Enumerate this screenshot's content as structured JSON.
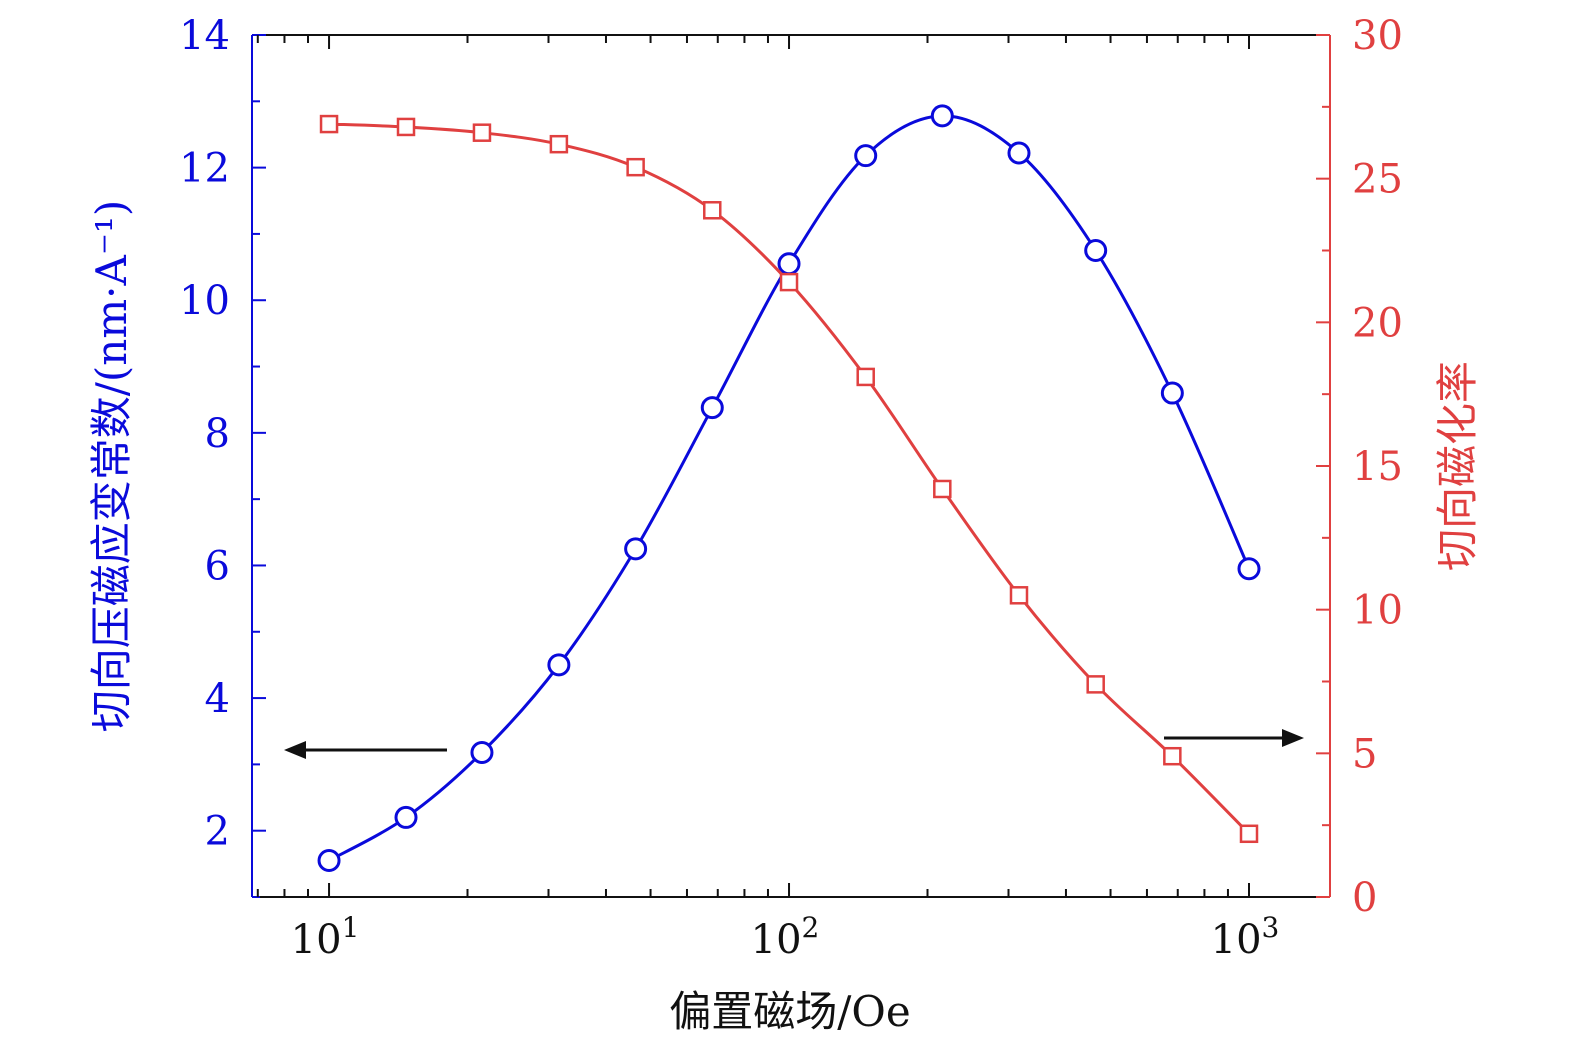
{
  "chart_data": {
    "type": "line",
    "xlabel": "偏置磁场/Oe",
    "x_scale": "log",
    "x_ticks": [
      {
        "base": "10",
        "exp": "1",
        "value": 10
      },
      {
        "base": "10",
        "exp": "2",
        "value": 100
      },
      {
        "base": "10",
        "exp": "3",
        "value": 1000
      }
    ],
    "xlim": [
      6.8,
      1500
    ],
    "y_left": {
      "label": "切向压磁应变常数/(nm·A⁻¹)",
      "ylim": [
        1,
        14
      ],
      "ticks": [
        2,
        4,
        6,
        8,
        10,
        12,
        14
      ],
      "color": "#0a0adb"
    },
    "y_right": {
      "label": "切向磁化率",
      "ylim": [
        0,
        30
      ],
      "ticks": [
        0,
        5,
        10,
        15,
        20,
        25,
        30
      ],
      "color": "#e04040"
    },
    "series": [
      {
        "axis": "left",
        "marker": "circle",
        "color": "#0a0adb",
        "x": [
          10,
          14.7,
          21.5,
          31.6,
          46.4,
          68.1,
          100,
          146.8,
          215.4,
          316.2,
          464.2,
          681.3,
          1000
        ],
        "y": [
          1.55,
          2.2,
          3.18,
          4.5,
          6.25,
          8.38,
          10.55,
          12.18,
          12.78,
          12.22,
          10.75,
          8.6,
          5.95
        ]
      },
      {
        "axis": "right",
        "marker": "square",
        "color": "#e04040",
        "x": [
          10,
          14.7,
          21.5,
          31.6,
          46.4,
          68.1,
          100,
          146.8,
          215.4,
          316.2,
          464.2,
          681.3,
          1000
        ],
        "y": [
          26.9,
          26.8,
          26.6,
          26.2,
          25.4,
          23.9,
          21.4,
          18.1,
          14.2,
          10.5,
          7.4,
          4.9,
          2.2
        ]
      }
    ],
    "annotations": [
      {
        "type": "arrow",
        "direction": "left",
        "points_to": "left-axis"
      },
      {
        "type": "arrow",
        "direction": "right",
        "points_to": "right-axis"
      }
    ]
  }
}
